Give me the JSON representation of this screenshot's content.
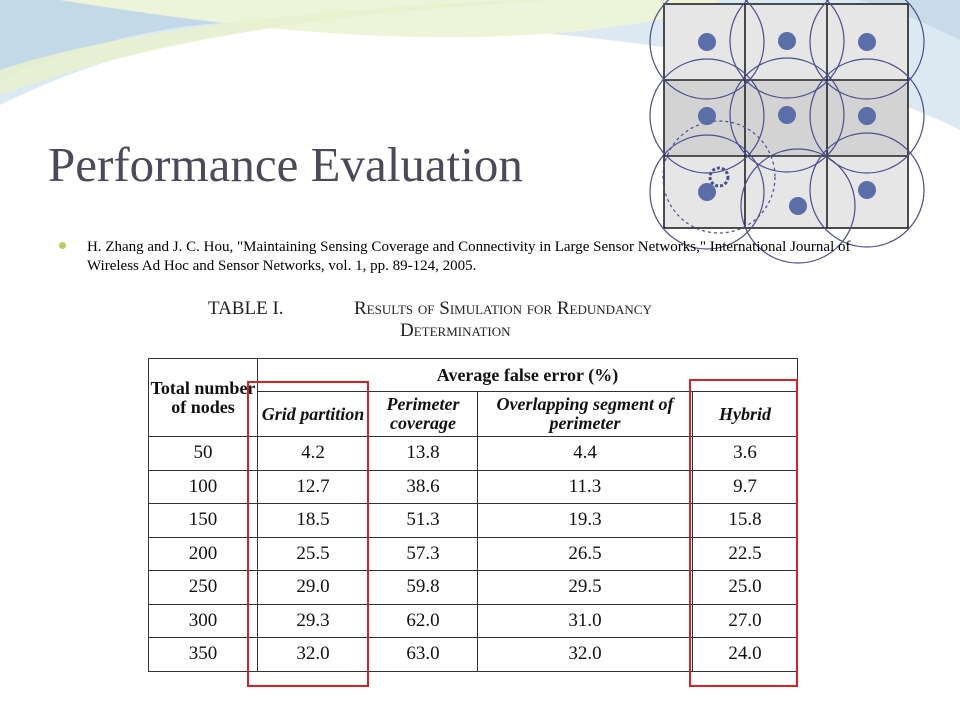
{
  "slide": {
    "title": "Performance Evaluation",
    "citation": "H. Zhang and J. C. Hou, \"Maintaining Sensing Coverage and Connectivity in Large Sensor Networks,\" International Journal of Wireless Ad Hoc and Sensor Networks, vol. 1, pp. 89-124, 2005."
  },
  "table": {
    "number": "TABLE I.",
    "title_line1": "Results of Simulation for Redundancy",
    "title_line2": "Determination",
    "header_total": "Total number of nodes",
    "header_group": "Average false error (%)",
    "columns": [
      "Grid partition",
      "Perimeter coverage",
      "Overlapping segment of perimeter",
      "Hybrid"
    ],
    "rows": [
      {
        "nodes": "50",
        "values": [
          "4.2",
          "13.8",
          "4.4",
          "3.6"
        ]
      },
      {
        "nodes": "100",
        "values": [
          "12.7",
          "38.6",
          "11.3",
          "9.7"
        ]
      },
      {
        "nodes": "150",
        "values": [
          "18.5",
          "51.3",
          "19.3",
          "15.8"
        ]
      },
      {
        "nodes": "200",
        "values": [
          "25.5",
          "57.3",
          "26.5",
          "22.5"
        ]
      },
      {
        "nodes": "250",
        "values": [
          "29.0",
          "59.8",
          "29.5",
          "25.0"
        ]
      },
      {
        "nodes": "300",
        "values": [
          "29.3",
          "62.0",
          "31.0",
          "27.0"
        ]
      },
      {
        "nodes": "350",
        "values": [
          "32.0",
          "63.0",
          "32.0",
          "24.0"
        ]
      }
    ]
  },
  "colors": {
    "title": "#4a4a5a",
    "bullet": "#b2d15a",
    "highlight_box": "#e02020",
    "sensor_dot": "#5b6ea8",
    "cell_fill": "#e6e6e6"
  },
  "icons": {
    "bullet": "round-bullet",
    "figure": "sensor-grid-coverage-diagram"
  }
}
